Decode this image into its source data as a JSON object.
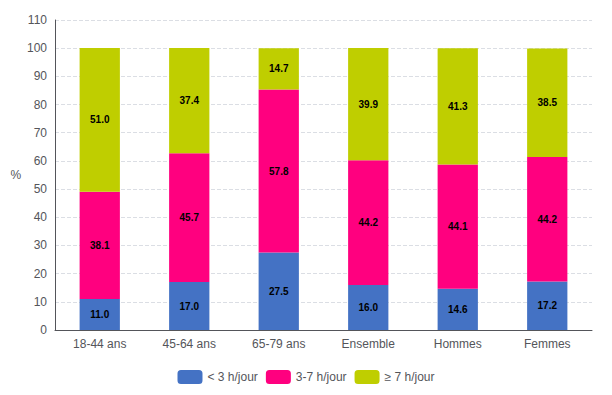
{
  "chart_data": {
    "type": "bar",
    "stacked": true,
    "data_labels": true,
    "grid": true,
    "legend": "bottom",
    "ylabel": "%",
    "categories": [
      "18-44 ans",
      "45-64 ans",
      "65-79 ans",
      "Ensemble",
      "Hommes",
      "Femmes"
    ],
    "series": [
      {
        "name": "< 3 h/jour",
        "color": "#4472C4",
        "values": [
          11.0,
          17.0,
          27.5,
          16.0,
          14.6,
          17.2
        ],
        "value_labels": [
          "11.0",
          "17.0",
          "27.5",
          "16.0",
          "14.6",
          "17.2"
        ]
      },
      {
        "name": "3-7 h/jour",
        "color": "#FF007F",
        "values": [
          38.1,
          45.7,
          57.8,
          44.2,
          44.1,
          44.2
        ],
        "value_labels": [
          "38.1",
          "45.7",
          "57.8",
          "44.2",
          "44.1",
          "44.2"
        ]
      },
      {
        "name": "≥ 7 h/jour",
        "color": "#BFCE00",
        "values": [
          51.0,
          37.4,
          14.7,
          39.9,
          41.3,
          38.5
        ],
        "value_labels": [
          "51.0",
          "37.4",
          "14.7",
          "39.9",
          "41.3",
          "38.5"
        ]
      }
    ],
    "ylim": [
      0,
      110
    ],
    "yticks": [
      0,
      10,
      20,
      30,
      40,
      50,
      60,
      70,
      80,
      90,
      100,
      110
    ]
  }
}
